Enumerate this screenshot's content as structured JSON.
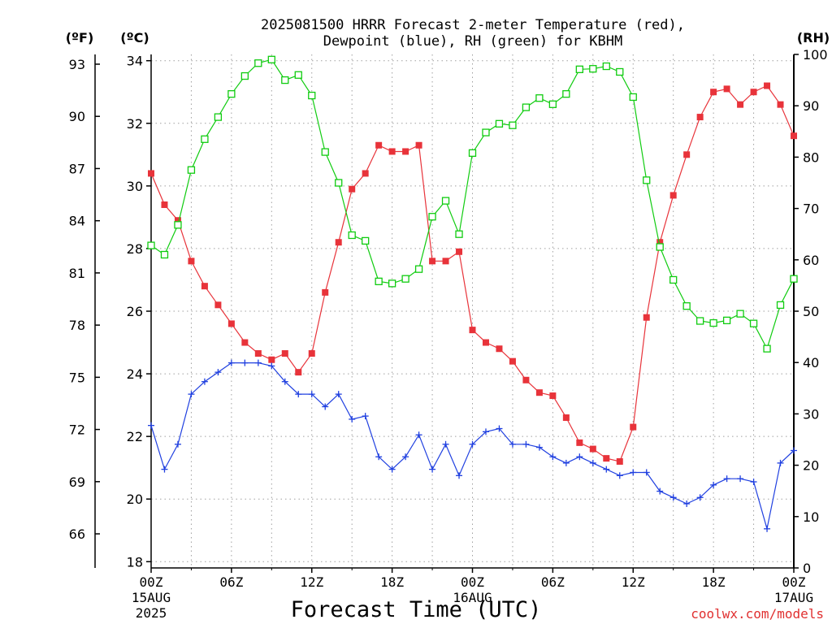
{
  "title_line1": "2025081500 HRRR Forecast 2-meter Temperature (red),",
  "title_line2": "Dewpoint (blue), RH (green) for KBHM",
  "unit_f": "(ºF)",
  "unit_c": "(ºC)",
  "unit_rh": "(RH)",
  "xlabel": "Forecast Time (UTC)",
  "credit": "coolwx.com/models",
  "colors": {
    "temperature": "#e8333a",
    "dewpoint": "#2040e0",
    "rh": "#10cc10",
    "grid": "#a0a0a0",
    "credit": "#e03030"
  },
  "chart_data": {
    "type": "line",
    "x_ticks": [
      {
        "hour": 0,
        "label": "00Z",
        "sub": [
          "15AUG",
          "2025"
        ]
      },
      {
        "hour": 6,
        "label": "06Z",
        "sub": []
      },
      {
        "hour": 12,
        "label": "12Z",
        "sub": []
      },
      {
        "hour": 18,
        "label": "18Z",
        "sub": []
      },
      {
        "hour": 24,
        "label": "00Z",
        "sub": [
          "16AUG"
        ]
      },
      {
        "hour": 30,
        "label": "06Z",
        "sub": []
      },
      {
        "hour": 36,
        "label": "12Z",
        "sub": []
      },
      {
        "hour": 42,
        "label": "18Z",
        "sub": []
      },
      {
        "hour": 48,
        "label": "00Z",
        "sub": [
          "17AUG"
        ]
      }
    ],
    "axes": {
      "y_celsius": {
        "range": [
          17.8,
          34.2
        ],
        "ticks": [
          18,
          20,
          22,
          24,
          26,
          28,
          30,
          32,
          34
        ]
      },
      "y_fahrenheit": {
        "ticks": [
          66,
          69,
          72,
          75,
          78,
          81,
          84,
          87,
          90,
          93
        ]
      },
      "y_rh": {
        "range": [
          0,
          100
        ],
        "ticks": [
          0,
          10,
          20,
          30,
          40,
          50,
          60,
          70,
          80,
          90,
          100
        ]
      }
    },
    "grid": true,
    "x_hours": [
      0,
      1,
      2,
      3,
      4,
      5,
      6,
      7,
      8,
      9,
      10,
      11,
      12,
      13,
      14,
      15,
      16,
      17,
      18,
      19,
      20,
      21,
      22,
      23,
      24,
      25,
      26,
      27,
      28,
      29,
      30,
      31,
      32,
      33,
      34,
      35,
      36,
      37,
      38,
      39,
      40,
      41,
      42,
      43,
      44,
      45,
      46,
      47,
      48
    ],
    "series": [
      {
        "name": "Temperature (°C)",
        "axis": "y_celsius",
        "marker": "filled-square",
        "values": [
          30.4,
          29.4,
          28.9,
          27.6,
          26.8,
          26.2,
          25.6,
          25.0,
          24.65,
          24.45,
          24.65,
          24.05,
          24.65,
          26.6,
          28.2,
          29.9,
          30.4,
          31.3,
          31.1,
          31.1,
          31.3,
          27.6,
          27.6,
          27.9,
          25.4,
          25.0,
          24.8,
          24.4,
          23.8,
          23.4,
          23.3,
          22.6,
          21.8,
          21.6,
          21.3,
          21.2,
          22.3,
          25.8,
          28.2,
          29.7,
          31.0,
          32.2,
          33.0,
          33.1,
          32.6,
          33.0,
          33.2,
          32.6,
          31.6
        ]
      },
      {
        "name": "Dewpoint (°C)",
        "axis": "y_celsius",
        "marker": "plus",
        "values": [
          22.35,
          20.95,
          21.75,
          23.35,
          23.75,
          24.05,
          24.35,
          24.35,
          24.35,
          24.25,
          23.75,
          23.35,
          23.35,
          22.95,
          23.35,
          22.55,
          22.65,
          21.35,
          20.95,
          21.35,
          22.05,
          20.95,
          21.75,
          20.75,
          21.75,
          22.15,
          22.25,
          21.75,
          21.75,
          21.65,
          21.35,
          21.15,
          21.35,
          21.15,
          20.95,
          20.75,
          20.85,
          20.85,
          20.25,
          20.05,
          19.85,
          20.05,
          20.45,
          20.65,
          20.65,
          20.55,
          19.05,
          21.15,
          21.55
        ]
      },
      {
        "name": "RH (%)",
        "axis": "y_rh",
        "marker": "open-square",
        "values": [
          62.8,
          61.0,
          66.8,
          77.5,
          83.5,
          87.8,
          92.3,
          95.8,
          98.3,
          99.0,
          95.0,
          96.0,
          92.0,
          81.0,
          75.0,
          64.8,
          63.7,
          55.8,
          55.4,
          56.3,
          58.2,
          68.4,
          71.5,
          65.0,
          80.8,
          84.8,
          86.5,
          86.2,
          89.7,
          91.5,
          90.3,
          92.3,
          97.1,
          97.2,
          97.7,
          96.6,
          91.7,
          75.5,
          62.5,
          56.1,
          51.0,
          48.1,
          47.7,
          48.2,
          49.5,
          47.6,
          42.7,
          51.2,
          56.3
        ]
      }
    ]
  }
}
